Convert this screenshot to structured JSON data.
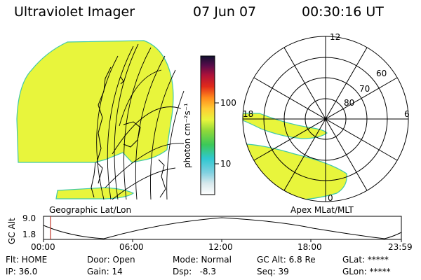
{
  "header": {
    "title": "Ultraviolet Imager",
    "date": "07 Jun 07",
    "time": "00:30:16 UT"
  },
  "colorbar": {
    "unit_label": "photon cm⁻²s⁻¹",
    "ticks": [
      "100",
      "10"
    ]
  },
  "geographic_panel": {
    "label": "Geographic Lat/Lon"
  },
  "polar_panel": {
    "label": "Apex MLat/MLT",
    "mlt_labels": {
      "top": "12",
      "left": "18",
      "right": "6",
      "bottom": "0"
    },
    "mlat_labels": [
      "60",
      "70",
      "80"
    ]
  },
  "gc_alt_plot": {
    "ylabel": "GC Alt",
    "yticks": [
      "9.0",
      "1.8"
    ],
    "xticks": [
      "00:00",
      "06:00",
      "12:00",
      "18:00",
      "23:59"
    ]
  },
  "status": {
    "flt": "Flt: HOME",
    "ip": "IP: 36.0",
    "door": "Door: Open",
    "gain": "Gain: 14",
    "mode": "Mode: Normal",
    "dsp": "Dsp:   -8.3",
    "gc_alt": "GC Alt: 6.8 Re",
    "seq": "Seq: 39",
    "glat": "GLat: *****",
    "glon": "GLon: *****"
  },
  "colors": {
    "aurora_fill": "#e8f53c",
    "aurora_edge": "#3fc9a8",
    "marker": "#c0392b"
  }
}
